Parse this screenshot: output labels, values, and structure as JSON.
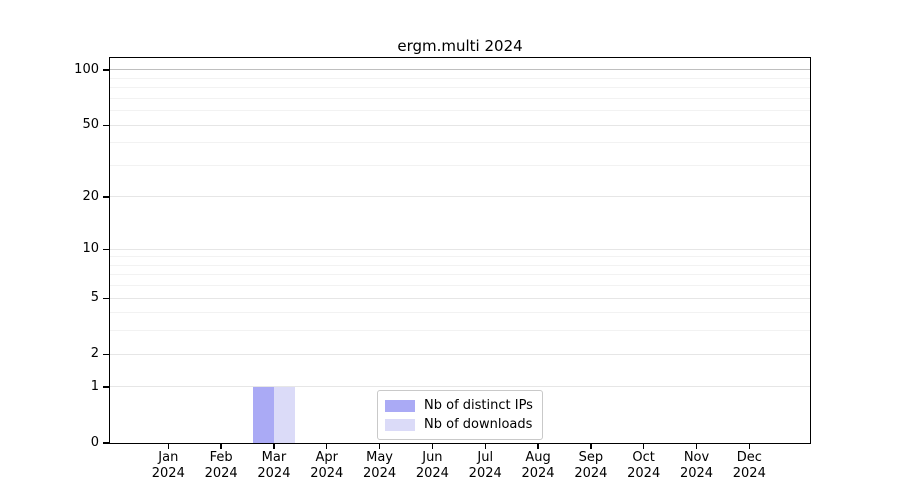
{
  "chart_data": {
    "type": "bar",
    "title": "ergm.multi 2024",
    "categories": [
      {
        "label": "Jan",
        "year": "2024"
      },
      {
        "label": "Feb",
        "year": "2024"
      },
      {
        "label": "Mar",
        "year": "2024"
      },
      {
        "label": "Apr",
        "year": "2024"
      },
      {
        "label": "May",
        "year": "2024"
      },
      {
        "label": "Jun",
        "year": "2024"
      },
      {
        "label": "Jul",
        "year": "2024"
      },
      {
        "label": "Aug",
        "year": "2024"
      },
      {
        "label": "Sep",
        "year": "2024"
      },
      {
        "label": "Oct",
        "year": "2024"
      },
      {
        "label": "Nov",
        "year": "2024"
      },
      {
        "label": "Dec",
        "year": "2024"
      }
    ],
    "series": [
      {
        "name": "Nb of distinct IPs",
        "color": "#aaaaf5",
        "values": [
          0,
          0,
          1,
          0,
          0,
          0,
          0,
          0,
          0,
          0,
          0,
          0
        ]
      },
      {
        "name": "Nb of downloads",
        "color": "#dbdbf8",
        "values": [
          0,
          0,
          1,
          0,
          0,
          0,
          0,
          0,
          0,
          0,
          0,
          0
        ]
      }
    ],
    "xlabel": "",
    "ylabel": "",
    "yscale": "log1p",
    "ylim": [
      0,
      116
    ],
    "yticks_major": [
      0,
      1,
      2,
      5,
      10,
      20,
      50,
      100
    ],
    "yticks_minor": [
      3,
      4,
      6,
      7,
      8,
      9,
      30,
      40,
      60,
      70,
      80,
      90
    ],
    "grid": true,
    "legend_position": "inside-bottom-center",
    "colors": {
      "axis": "#000000",
      "grid_major": "#e6e6e6",
      "grid_minor": "#f2f2f2",
      "grid_top": "#bfbfbf",
      "legend_border": "#c9c9c9",
      "background": "#ffffff"
    }
  }
}
